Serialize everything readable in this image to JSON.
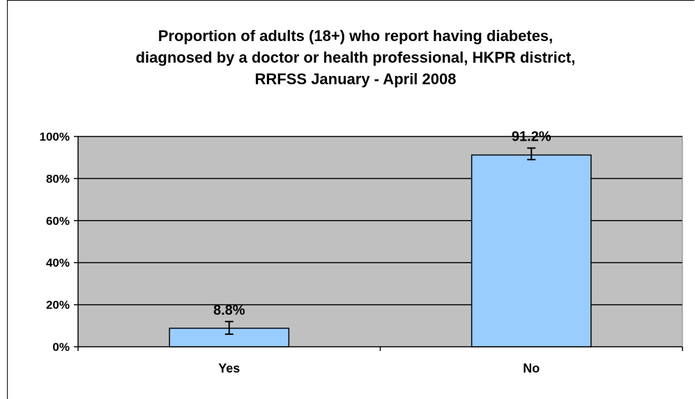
{
  "chart_data": {
    "type": "bar",
    "title_lines": [
      "Proportion of adults (18+) who report having diabetes,",
      "diagnosed by a doctor or health professional, HKPR district,",
      "RRFSS January - April 2008"
    ],
    "categories": [
      "Yes",
      "No"
    ],
    "values": [
      8.8,
      91.2
    ],
    "value_labels": [
      "8.8%",
      "91.2%"
    ],
    "error_bars": [
      {
        "low": 6.0,
        "high": 12.0
      },
      {
        "low": 89.0,
        "high": 94.5
      }
    ],
    "ylim": [
      0,
      100
    ],
    "yticks": [
      0,
      20,
      40,
      60,
      80,
      100
    ],
    "ytick_labels": [
      "0%",
      "20%",
      "40%",
      "60%",
      "80%",
      "100%"
    ],
    "xlabel": "",
    "ylabel": "",
    "grid": true,
    "legend": "none",
    "colors": {
      "bar": "#99ccff",
      "plot_background": "#c0c0c0",
      "gridline": "#000000"
    }
  }
}
